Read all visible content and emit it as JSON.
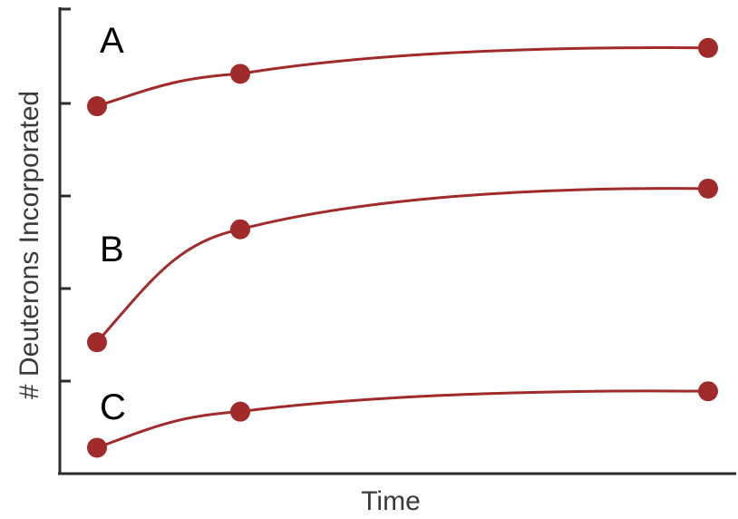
{
  "chart_data": {
    "type": "line",
    "title": "",
    "xlabel": "Time",
    "ylabel": "# Deuterons Incorporated",
    "x": [
      1,
      2,
      5
    ],
    "ylim": [
      0,
      5
    ],
    "yticks": [
      1,
      2,
      3,
      4
    ],
    "grid": false,
    "legend": "none",
    "series": [
      {
        "name": "A",
        "values": [
          3.97,
          4.32,
          4.6
        ]
      },
      {
        "name": "B",
        "values": [
          1.42,
          2.64,
          3.08
        ]
      },
      {
        "name": "C",
        "values": [
          0.28,
          0.67,
          0.89
        ]
      }
    ],
    "colors": {
      "series": "#a12a2a",
      "axis": "#2b2b2b"
    }
  }
}
